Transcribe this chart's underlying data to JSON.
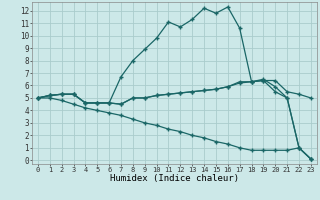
{
  "xlabel": "Humidex (Indice chaleur)",
  "x_ticks": [
    0,
    1,
    2,
    3,
    4,
    5,
    6,
    7,
    8,
    9,
    10,
    11,
    12,
    13,
    14,
    15,
    16,
    17,
    18,
    19,
    20,
    21,
    22,
    23
  ],
  "y_ticks": [
    0,
    1,
    2,
    3,
    4,
    5,
    6,
    7,
    8,
    9,
    10,
    11,
    12
  ],
  "xlim": [
    -0.5,
    23.5
  ],
  "ylim": [
    -0.3,
    12.7
  ],
  "bg_color": "#cce8e8",
  "grid_color": "#aacccc",
  "line_color": "#1a6666",
  "line1_x": [
    0,
    1,
    2,
    3,
    4,
    5,
    6,
    7,
    8,
    9,
    10,
    11,
    12,
    13,
    14,
    15,
    16,
    17,
    18,
    19,
    20,
    21,
    22,
    23
  ],
  "line1_y": [
    5.0,
    5.2,
    5.3,
    5.3,
    4.6,
    4.6,
    4.6,
    4.5,
    5.0,
    5.0,
    5.2,
    5.3,
    5.4,
    5.5,
    5.6,
    5.7,
    5.9,
    6.2,
    6.3,
    6.4,
    6.4,
    5.5,
    5.3,
    5.0
  ],
  "line2_x": [
    0,
    1,
    2,
    3,
    4,
    5,
    6,
    7,
    8,
    9,
    10,
    11,
    12,
    13,
    14,
    15,
    16,
    17,
    18,
    19,
    20,
    21,
    22,
    23
  ],
  "line2_y": [
    5.0,
    5.2,
    5.3,
    5.3,
    4.6,
    4.6,
    4.6,
    4.5,
    5.0,
    5.0,
    5.2,
    5.3,
    5.4,
    5.5,
    5.6,
    5.7,
    5.9,
    6.3,
    6.3,
    6.4,
    5.5,
    5.0,
    1.0,
    0.1
  ],
  "line3_x": [
    0,
    1,
    2,
    3,
    4,
    5,
    6,
    7,
    8,
    9,
    10,
    11,
    12,
    13,
    14,
    15,
    16,
    17,
    18,
    19,
    20,
    21,
    22,
    23
  ],
  "line3_y": [
    5.0,
    5.2,
    5.3,
    5.3,
    4.6,
    4.6,
    4.6,
    6.7,
    8.0,
    8.9,
    9.8,
    11.1,
    10.7,
    11.3,
    12.2,
    11.8,
    12.3,
    10.6,
    6.3,
    6.5,
    5.9,
    5.0,
    1.0,
    0.1
  ],
  "line4_x": [
    0,
    1,
    2,
    3,
    4,
    5,
    6,
    7,
    8,
    9,
    10,
    11,
    12,
    13,
    14,
    15,
    16,
    17,
    18,
    19,
    20,
    21,
    22,
    23
  ],
  "line4_y": [
    5.0,
    5.0,
    4.8,
    4.5,
    4.2,
    4.0,
    3.8,
    3.6,
    3.3,
    3.0,
    2.8,
    2.5,
    2.3,
    2.0,
    1.8,
    1.5,
    1.3,
    1.0,
    0.8,
    0.8,
    0.8,
    0.8,
    1.0,
    0.1
  ]
}
